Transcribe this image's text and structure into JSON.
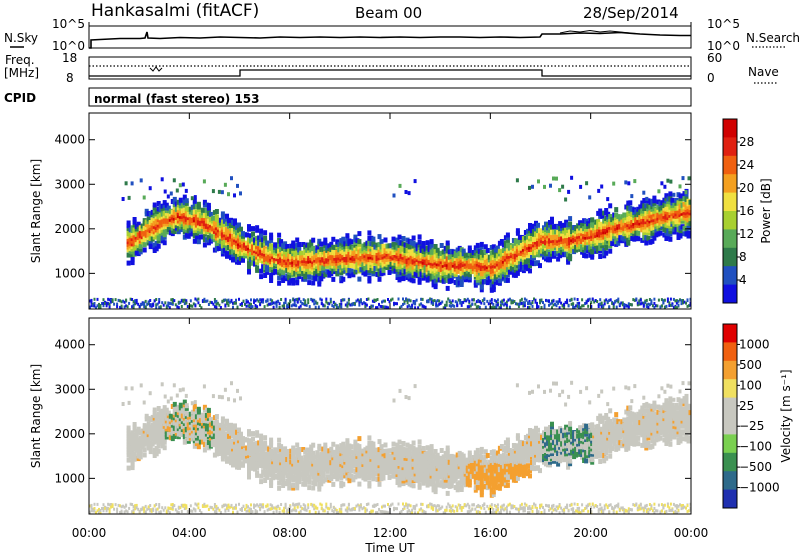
{
  "header": {
    "title": "Hankasalmi (fitACF)",
    "beam": "Beam 00",
    "date": "28/Sep/2014"
  },
  "noise_panel": {
    "left_label": "N.Sky",
    "right_label": "N.Search",
    "left_ticks": [
      "10^5",
      "10^0"
    ],
    "right_ticks": [
      "10^5",
      "10^0"
    ]
  },
  "freq_panel": {
    "left_label_1": "Freq.",
    "left_label_2": "[MHz]",
    "right_label": "Nave",
    "left_ticks": [
      "18",
      "8"
    ],
    "right_ticks": [
      "60",
      "0"
    ]
  },
  "cpid": {
    "label": "CPID",
    "program": "normal (fast stereo) 153"
  },
  "x_axis": {
    "label": "Time UT",
    "ticks": [
      "00:00",
      "04:00",
      "08:00",
      "12:00",
      "16:00",
      "20:00",
      "00:00"
    ]
  },
  "chart_data": [
    {
      "type": "heatmap",
      "name": "power",
      "ylabel": "Slant Range [km]",
      "x_range": [
        0,
        24
      ],
      "ylim": [
        200,
        4600
      ],
      "y_ticks": [
        "1000",
        "2000",
        "3000",
        "4000"
      ],
      "colorbar": {
        "label": "Power [dB]",
        "ticks": [
          "4",
          "8",
          "12",
          "16",
          "20",
          "24",
          "28"
        ],
        "colors": [
          "#1010e0",
          "#2050c0",
          "#2e7a4a",
          "#58aa58",
          "#a8d030",
          "#f0e040",
          "#f4a020",
          "#f06010",
          "#e02010",
          "#d00000"
        ]
      },
      "main_band_x": [
        1.6,
        2.5,
        3.5,
        4.5,
        6,
        7,
        8,
        10,
        12,
        14,
        15,
        16,
        17,
        18,
        19,
        20,
        21,
        22,
        23,
        24
      ],
      "main_band_y": [
        1750,
        2100,
        2350,
        2200,
        1700,
        1450,
        1300,
        1400,
        1450,
        1250,
        1250,
        1200,
        1500,
        1800,
        1800,
        1900,
        2100,
        2200,
        2350,
        2450
      ]
    },
    {
      "type": "heatmap",
      "name": "velocity",
      "ylabel": "Slant Range [km]",
      "x_range": [
        0,
        24
      ],
      "ylim": [
        200,
        4600
      ],
      "y_ticks": [
        "1000",
        "2000",
        "3000",
        "4000"
      ],
      "colorbar": {
        "label": "Velocity [m s⁻¹]",
        "ticks": [
          "1000",
          "500",
          "100",
          "25",
          "−25",
          "−100",
          "−500",
          "−1000"
        ],
        "colors": [
          "#2030b0",
          "#2e6a8a",
          "#3a9050",
          "#7ad050",
          "#c8c8c0",
          "#c8c8c0",
          "#f0e060",
          "#f4a030",
          "#f06010",
          "#e00000"
        ]
      }
    }
  ]
}
